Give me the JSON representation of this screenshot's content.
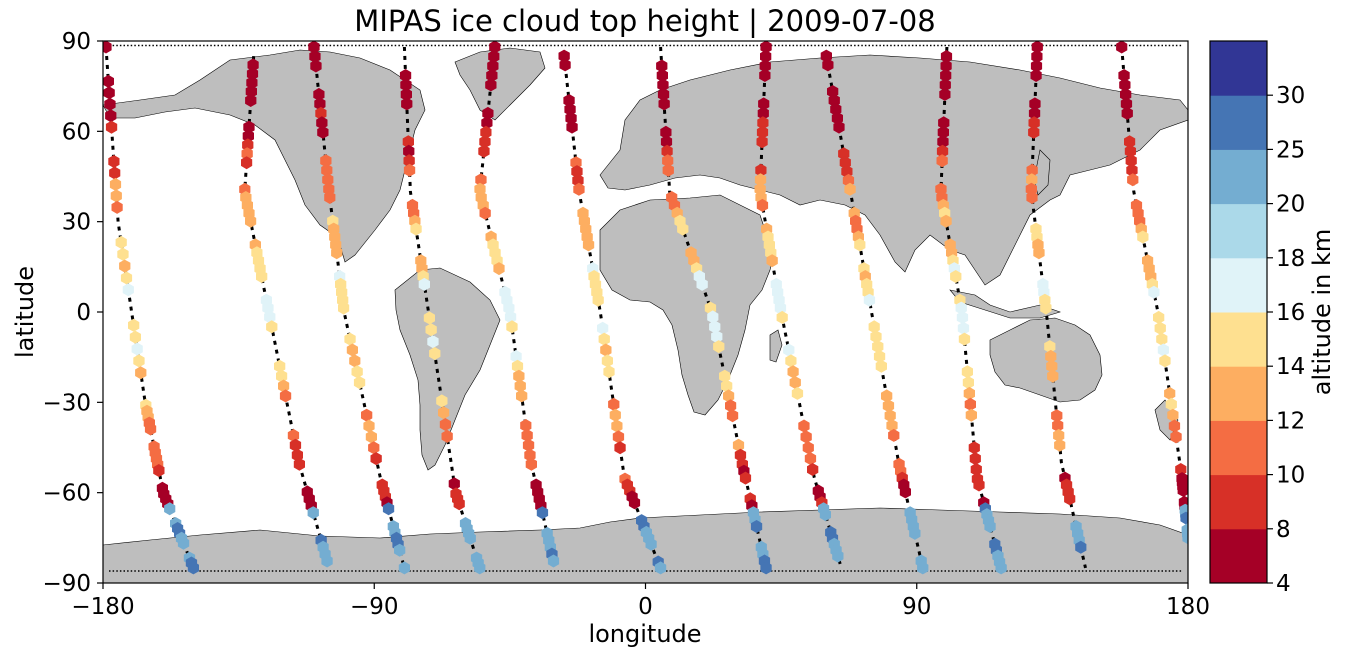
{
  "chart_data": {
    "type": "scatter",
    "title": "MIPAS ice cloud top height | 2009-07-08",
    "xlabel": "longitude",
    "ylabel": "latitude",
    "xlim": [
      -180,
      180
    ],
    "ylim": [
      -90,
      90
    ],
    "xticks": [
      "−180",
      "−90",
      "0",
      "90",
      "180"
    ],
    "yticks": [
      "90",
      "60",
      "30",
      "0",
      "−30",
      "−60",
      "−90"
    ],
    "xtick_values": [
      -180,
      -90,
      0,
      90,
      180
    ],
    "ytick_values": [
      90,
      60,
      30,
      0,
      -30,
      -60,
      -90
    ],
    "grid": false,
    "colorbar": {
      "label": "altitude in km",
      "boundaries": [
        4,
        8,
        10,
        12,
        14,
        16,
        18,
        20,
        25,
        30
      ],
      "tick_labels": [
        "4",
        "8",
        "10",
        "12",
        "14",
        "16",
        "18",
        "20",
        "25",
        "30"
      ],
      "colors": [
        "#a50026",
        "#d73027",
        "#f46d43",
        "#fdae61",
        "#fee090",
        "#e0f3f8",
        "#abd9e9",
        "#74add1",
        "#4575b4",
        "#313695"
      ]
    },
    "colors": {
      "land": "#bebebe",
      "coast": "#000000",
      "track": "#000000"
    },
    "tracks": [
      {
        "lon0": -179,
        "lat0": 88,
        "lon1": -175,
        "lat1": 30,
        "lon2": -166,
        "lat2": -30,
        "lon3": -160,
        "lat3": -60,
        "lon4": -150,
        "lat4": -85
      },
      {
        "lon0": -130,
        "lat0": 85,
        "lon1": -133,
        "lat1": 40,
        "lon2": -125,
        "lat2": 0,
        "lon3": -115,
        "lat3": -50,
        "lon4": -105,
        "lat4": -85
      },
      {
        "lon0": -110,
        "lat0": 88,
        "lon1": -105,
        "lat1": 40,
        "lon2": -100,
        "lat2": 0,
        "lon3": -88,
        "lat3": -55,
        "lon4": -80,
        "lat4": -85
      },
      {
        "lon0": -80,
        "lat0": 88,
        "lon1": -78,
        "lat1": 40,
        "lon2": -72,
        "lat2": 0,
        "lon3": -63,
        "lat3": -60,
        "lon4": -55,
        "lat4": -85
      },
      {
        "lon0": -50,
        "lat0": 88,
        "lon1": -55,
        "lat1": 40,
        "lon2": -45,
        "lat2": 0,
        "lon3": -38,
        "lat3": -50,
        "lon4": -30,
        "lat4": -85
      },
      {
        "lon0": -27,
        "lat0": 85,
        "lon1": -22,
        "lat1": 40,
        "lon2": -15,
        "lat2": 0,
        "lon3": -7,
        "lat3": -55,
        "lon4": 5,
        "lat4": -85
      },
      {
        "lon0": 5,
        "lat0": 88,
        "lon1": 8,
        "lat1": 40,
        "lon2": 22,
        "lat2": 0,
        "lon3": 32,
        "lat3": -50,
        "lon4": 40,
        "lat4": -85
      },
      {
        "lon0": 40,
        "lat0": 88,
        "lon1": 38,
        "lat1": 40,
        "lon2": 45,
        "lat2": 0,
        "lon3": 56,
        "lat3": -55,
        "lon4": 65,
        "lat4": -85
      },
      {
        "lon0": 60,
        "lat0": 85,
        "lon1": 68,
        "lat1": 40,
        "lon2": 75,
        "lat2": 0,
        "lon3": 84,
        "lat3": -50,
        "lon4": 92,
        "lat4": -85
      },
      {
        "lon0": 100,
        "lat0": 88,
        "lon1": 98,
        "lat1": 40,
        "lon2": 105,
        "lat2": 0,
        "lon3": 110,
        "lat3": -55,
        "lon4": 118,
        "lat4": -85
      },
      {
        "lon0": 130,
        "lat0": 88,
        "lon1": 128,
        "lat1": 40,
        "lon2": 133,
        "lat2": 0,
        "lon3": 138,
        "lat3": -50,
        "lon4": 146,
        "lat4": -85
      },
      {
        "lon0": 158,
        "lat0": 88,
        "lon1": 162,
        "lat1": 40,
        "lon2": 170,
        "lat2": 0,
        "lon3": 178,
        "lat3": -55,
        "lon4": 180,
        "lat4": -75
      }
    ]
  }
}
